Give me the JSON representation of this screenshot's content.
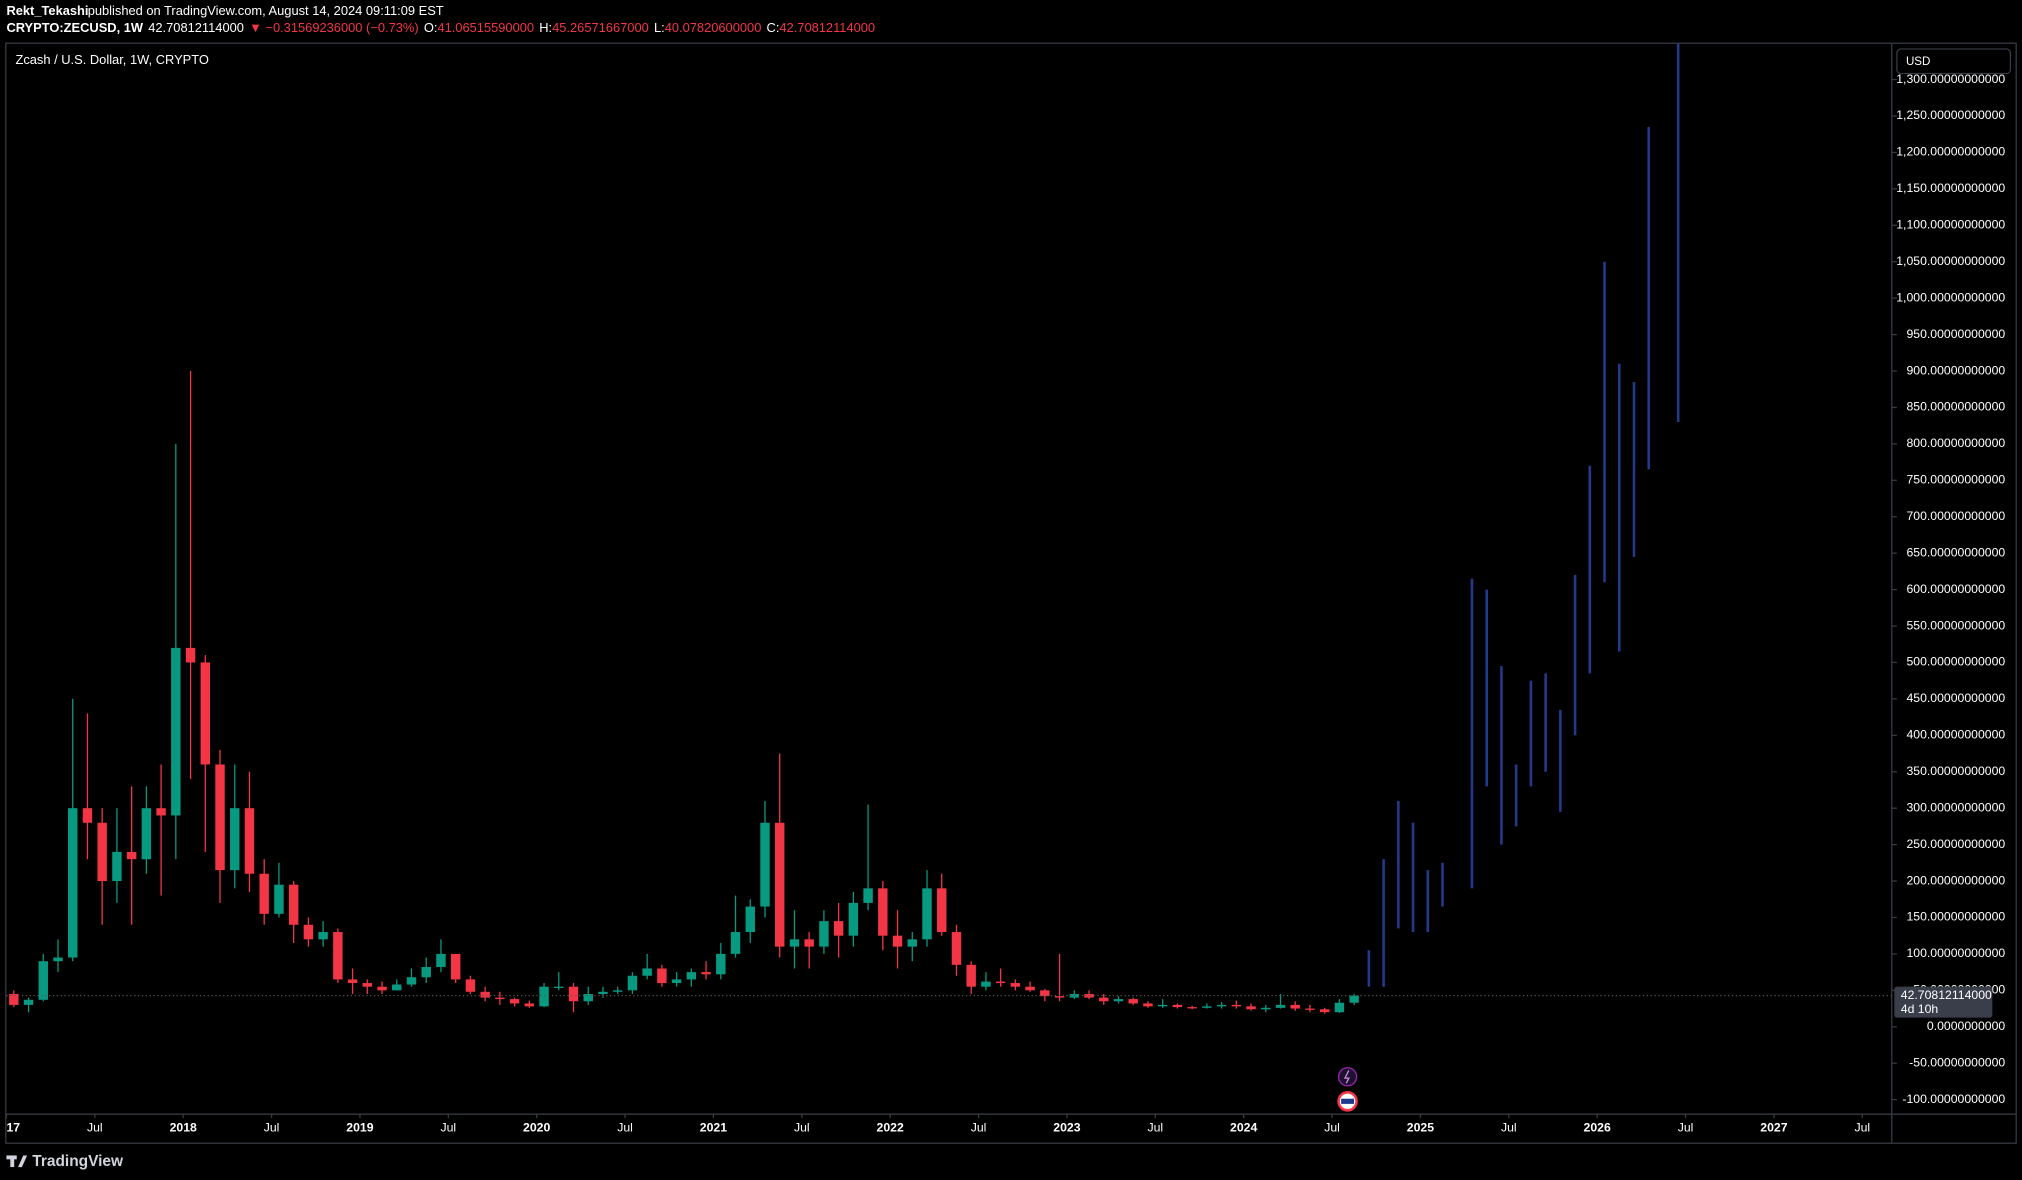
{
  "header": {
    "publisher": "Rekt_Tekashi",
    "published": "published on TradingView.com, August 14, 2024 09:11:09 EST",
    "symbol": "CRYPTO:ZECUSD, 1W",
    "last": "42.70812114000",
    "change": "▼ −0.31569236000 (−0.73%)",
    "ohlc": [
      {
        "label": "O:",
        "value": "41.06515590000"
      },
      {
        "label": "H:",
        "value": "45.26571667000"
      },
      {
        "label": "L:",
        "value": "40.07820600000"
      },
      {
        "label": "C:",
        "value": "42.70812114000"
      }
    ]
  },
  "chart_data": {
    "type": "candlestick",
    "title": "Zcash / U.S. Dollar, 1W, CRYPTO",
    "currency": "USD",
    "up_color": "#089981",
    "down_color": "#f23645",
    "last_price": 42.70812114,
    "last_price_label": "42.70812114000",
    "countdown": "4d 10h",
    "x": [
      "2017-01",
      "2017-02",
      "2017-03",
      "2017-04",
      "2017-05",
      "2017-06",
      "2017-07",
      "2017-08",
      "2017-09",
      "2017-10",
      "2017-11",
      "2017-12",
      "2018-01",
      "2018-02",
      "2018-03",
      "2018-04",
      "2018-05",
      "2018-06",
      "2018-07",
      "2018-08",
      "2018-09",
      "2018-10",
      "2018-11",
      "2018-12",
      "2019-01",
      "2019-02",
      "2019-03",
      "2019-04",
      "2019-05",
      "2019-06",
      "2019-07",
      "2019-08",
      "2019-09",
      "2019-10",
      "2019-11",
      "2019-12",
      "2020-01",
      "2020-02",
      "2020-03",
      "2020-04",
      "2020-05",
      "2020-06",
      "2020-07",
      "2020-08",
      "2020-09",
      "2020-10",
      "2020-11",
      "2020-12",
      "2021-01",
      "2021-02",
      "2021-03",
      "2021-04",
      "2021-05",
      "2021-06",
      "2021-07",
      "2021-08",
      "2021-09",
      "2021-10",
      "2021-11",
      "2021-12",
      "2022-01",
      "2022-02",
      "2022-03",
      "2022-04",
      "2022-05",
      "2022-06",
      "2022-07",
      "2022-08",
      "2022-09",
      "2022-10",
      "2022-11",
      "2022-12",
      "2023-01",
      "2023-02",
      "2023-03",
      "2023-04",
      "2023-05",
      "2023-06",
      "2023-07",
      "2023-08",
      "2023-09",
      "2023-10",
      "2023-11",
      "2023-12",
      "2024-01",
      "2024-02",
      "2024-03",
      "2024-04",
      "2024-05",
      "2024-06",
      "2024-07",
      "2024-08"
    ],
    "open": [
      45,
      30,
      37,
      90,
      95,
      300,
      280,
      200,
      240,
      230,
      300,
      290,
      520,
      500,
      360,
      215,
      300,
      210,
      155,
      195,
      140,
      120,
      130,
      65,
      60,
      55,
      50,
      58,
      68,
      82,
      100,
      65,
      48,
      40,
      38,
      32,
      28,
      55,
      55,
      35,
      45,
      48,
      50,
      70,
      80,
      60,
      65,
      75,
      72,
      100,
      130,
      165,
      280,
      110,
      120,
      110,
      145,
      125,
      170,
      190,
      125,
      110,
      120,
      190,
      130,
      85,
      55,
      62,
      60,
      55,
      50,
      42,
      40,
      45,
      40,
      35,
      38,
      32,
      28,
      30,
      27,
      26,
      28,
      30,
      28,
      24,
      26,
      30,
      25,
      24,
      20,
      33
    ],
    "high": [
      50,
      40,
      100,
      120,
      450,
      430,
      300,
      300,
      330,
      330,
      360,
      800,
      900,
      510,
      380,
      360,
      350,
      230,
      225,
      200,
      150,
      145,
      135,
      80,
      65,
      62,
      65,
      80,
      95,
      120,
      100,
      70,
      55,
      48,
      40,
      36,
      60,
      75,
      60,
      55,
      55,
      55,
      75,
      100,
      85,
      75,
      80,
      90,
      115,
      180,
      175,
      310,
      375,
      160,
      130,
      160,
      170,
      185,
      305,
      200,
      160,
      130,
      215,
      210,
      140,
      90,
      75,
      80,
      65,
      62,
      52,
      100,
      50,
      50,
      45,
      42,
      40,
      35,
      38,
      32,
      29,
      32,
      34,
      36,
      32,
      30,
      45,
      35,
      30,
      26,
      38,
      45
    ],
    "low": [
      27,
      20,
      35,
      75,
      90,
      230,
      140,
      170,
      140,
      210,
      180,
      230,
      340,
      240,
      170,
      190,
      185,
      140,
      150,
      115,
      110,
      110,
      60,
      45,
      45,
      45,
      50,
      55,
      60,
      75,
      60,
      45,
      35,
      30,
      28,
      26,
      27,
      50,
      20,
      30,
      40,
      45,
      45,
      65,
      55,
      55,
      55,
      65,
      65,
      95,
      115,
      150,
      95,
      80,
      80,
      100,
      95,
      110,
      160,
      105,
      80,
      90,
      110,
      125,
      70,
      45,
      50,
      55,
      50,
      48,
      35,
      35,
      38,
      38,
      30,
      32,
      30,
      26,
      26,
      25,
      24,
      25,
      25,
      25,
      22,
      20,
      25,
      22,
      20,
      18,
      19,
      30
    ],
    "close": [
      30,
      37,
      90,
      95,
      300,
      280,
      200,
      240,
      230,
      300,
      290,
      520,
      500,
      360,
      215,
      300,
      210,
      155,
      195,
      140,
      120,
      130,
      65,
      60,
      55,
      50,
      58,
      68,
      82,
      100,
      65,
      48,
      40,
      38,
      32,
      28,
      55,
      55,
      35,
      45,
      48,
      50,
      70,
      80,
      60,
      65,
      75,
      72,
      100,
      130,
      165,
      280,
      110,
      120,
      110,
      145,
      125,
      170,
      190,
      125,
      110,
      120,
      190,
      130,
      85,
      55,
      62,
      60,
      55,
      50,
      42,
      40,
      45,
      40,
      35,
      38,
      32,
      28,
      30,
      27,
      26,
      28,
      30,
      28,
      24,
      26,
      30,
      25,
      24,
      20,
      33,
      42.70812114
    ],
    "projection": {
      "color": "#223a8c",
      "x": [
        "2024-09",
        "2024-10",
        "2024-11",
        "2024-12",
        "2025-01",
        "2025-02",
        "2025-04",
        "2025-05",
        "2025-06",
        "2025-07",
        "2025-08",
        "2025-09",
        "2025-10",
        "2025-11",
        "2025-12",
        "2026-01",
        "2026-02",
        "2026-03",
        "2026-04",
        "2026-06"
      ],
      "low": [
        55,
        55,
        135,
        130,
        130,
        165,
        190,
        330,
        250,
        275,
        330,
        350,
        295,
        400,
        485,
        610,
        515,
        645,
        765,
        830
      ],
      "high": [
        105,
        230,
        310,
        280,
        215,
        225,
        615,
        600,
        495,
        360,
        475,
        485,
        435,
        620,
        770,
        1050,
        910,
        885,
        1235,
        1350
      ]
    },
    "xlim": [
      "2017-01",
      "2027-09"
    ],
    "xticks": [
      {
        "value": "2017-01",
        "label": "17"
      },
      {
        "value": "2017-07",
        "label": "Jul"
      },
      {
        "value": "2018-01",
        "label": "2018"
      },
      {
        "value": "2018-07",
        "label": "Jul"
      },
      {
        "value": "2019-01",
        "label": "2019"
      },
      {
        "value": "2019-07",
        "label": "Jul"
      },
      {
        "value": "2020-01",
        "label": "2020"
      },
      {
        "value": "2020-07",
        "label": "Jul"
      },
      {
        "value": "2021-01",
        "label": "2021"
      },
      {
        "value": "2021-07",
        "label": "Jul"
      },
      {
        "value": "2022-01",
        "label": "2022"
      },
      {
        "value": "2022-07",
        "label": "Jul"
      },
      {
        "value": "2023-01",
        "label": "2023"
      },
      {
        "value": "2023-07",
        "label": "Jul"
      },
      {
        "value": "2024-01",
        "label": "2024"
      },
      {
        "value": "2024-07",
        "label": "Jul"
      },
      {
        "value": "2025-01",
        "label": "2025"
      },
      {
        "value": "2025-07",
        "label": "Jul"
      },
      {
        "value": "2026-01",
        "label": "2026"
      },
      {
        "value": "2026-07",
        "label": "Jul"
      },
      {
        "value": "2027-01",
        "label": "2027"
      },
      {
        "value": "2027-07",
        "label": "Jul"
      }
    ],
    "ylim": [
      -120,
      1349
    ],
    "yticks": [
      {
        "value": -100,
        "label": "-100.00000000000"
      },
      {
        "value": -50,
        "label": "-50.00000000000"
      },
      {
        "value": 0,
        "label": "0.0000000000"
      },
      {
        "value": 50,
        "label": "50.00000000000"
      },
      {
        "value": 100,
        "label": "100.00000000000"
      },
      {
        "value": 150,
        "label": "150.00000000000"
      },
      {
        "value": 200,
        "label": "200.00000000000"
      },
      {
        "value": 250,
        "label": "250.00000000000"
      },
      {
        "value": 300,
        "label": "300.00000000000"
      },
      {
        "value": 350,
        "label": "350.00000000000"
      },
      {
        "value": 400,
        "label": "400.00000000000"
      },
      {
        "value": 450,
        "label": "450.00000000000"
      },
      {
        "value": 500,
        "label": "500.00000000000"
      },
      {
        "value": 550,
        "label": "550.00000000000"
      },
      {
        "value": 600,
        "label": "600.00000000000"
      },
      {
        "value": 650,
        "label": "650.00000000000"
      },
      {
        "value": 700,
        "label": "700.00000000000"
      },
      {
        "value": 750,
        "label": "750.00000000000"
      },
      {
        "value": 800,
        "label": "800.00000000000"
      },
      {
        "value": 850,
        "label": "850.00000000000"
      },
      {
        "value": 900,
        "label": "900.00000000000"
      },
      {
        "value": 950,
        "label": "950.00000000000"
      },
      {
        "value": 1000,
        "label": "1,000.00000000000"
      },
      {
        "value": 1050,
        "label": "1,050.00000000000"
      },
      {
        "value": 1100,
        "label": "1,100.00000000000"
      },
      {
        "value": 1150,
        "label": "1,150.00000000000"
      },
      {
        "value": 1200,
        "label": "1,200.00000000000"
      },
      {
        "value": 1250,
        "label": "1,250.00000000000"
      },
      {
        "value": 1300,
        "label": "1,300.00000000000"
      }
    ]
  },
  "footer": {
    "brand": "TradingView"
  }
}
